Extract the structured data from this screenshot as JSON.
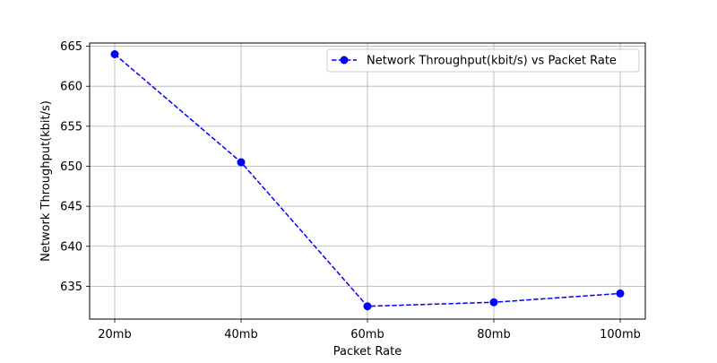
{
  "chart_data": {
    "type": "line",
    "title": "",
    "xlabel": "Packet Rate",
    "ylabel": "Network Throughput(kbit/s)",
    "categories": [
      "20mb",
      "40mb",
      "60mb",
      "80mb",
      "100mb"
    ],
    "series": [
      {
        "name": "Network Throughput(kbit/s) vs Packet Rate",
        "values": [
          664.0,
          650.5,
          632.5,
          633.0,
          634.1
        ],
        "color": "#0000ff",
        "line_style": "dashed",
        "marker": "circle"
      }
    ],
    "ylim": [
      630.9,
      665.4
    ],
    "yticks": [
      635,
      640,
      645,
      650,
      655,
      660,
      665
    ],
    "grid": true,
    "legend_position": "top-right"
  }
}
